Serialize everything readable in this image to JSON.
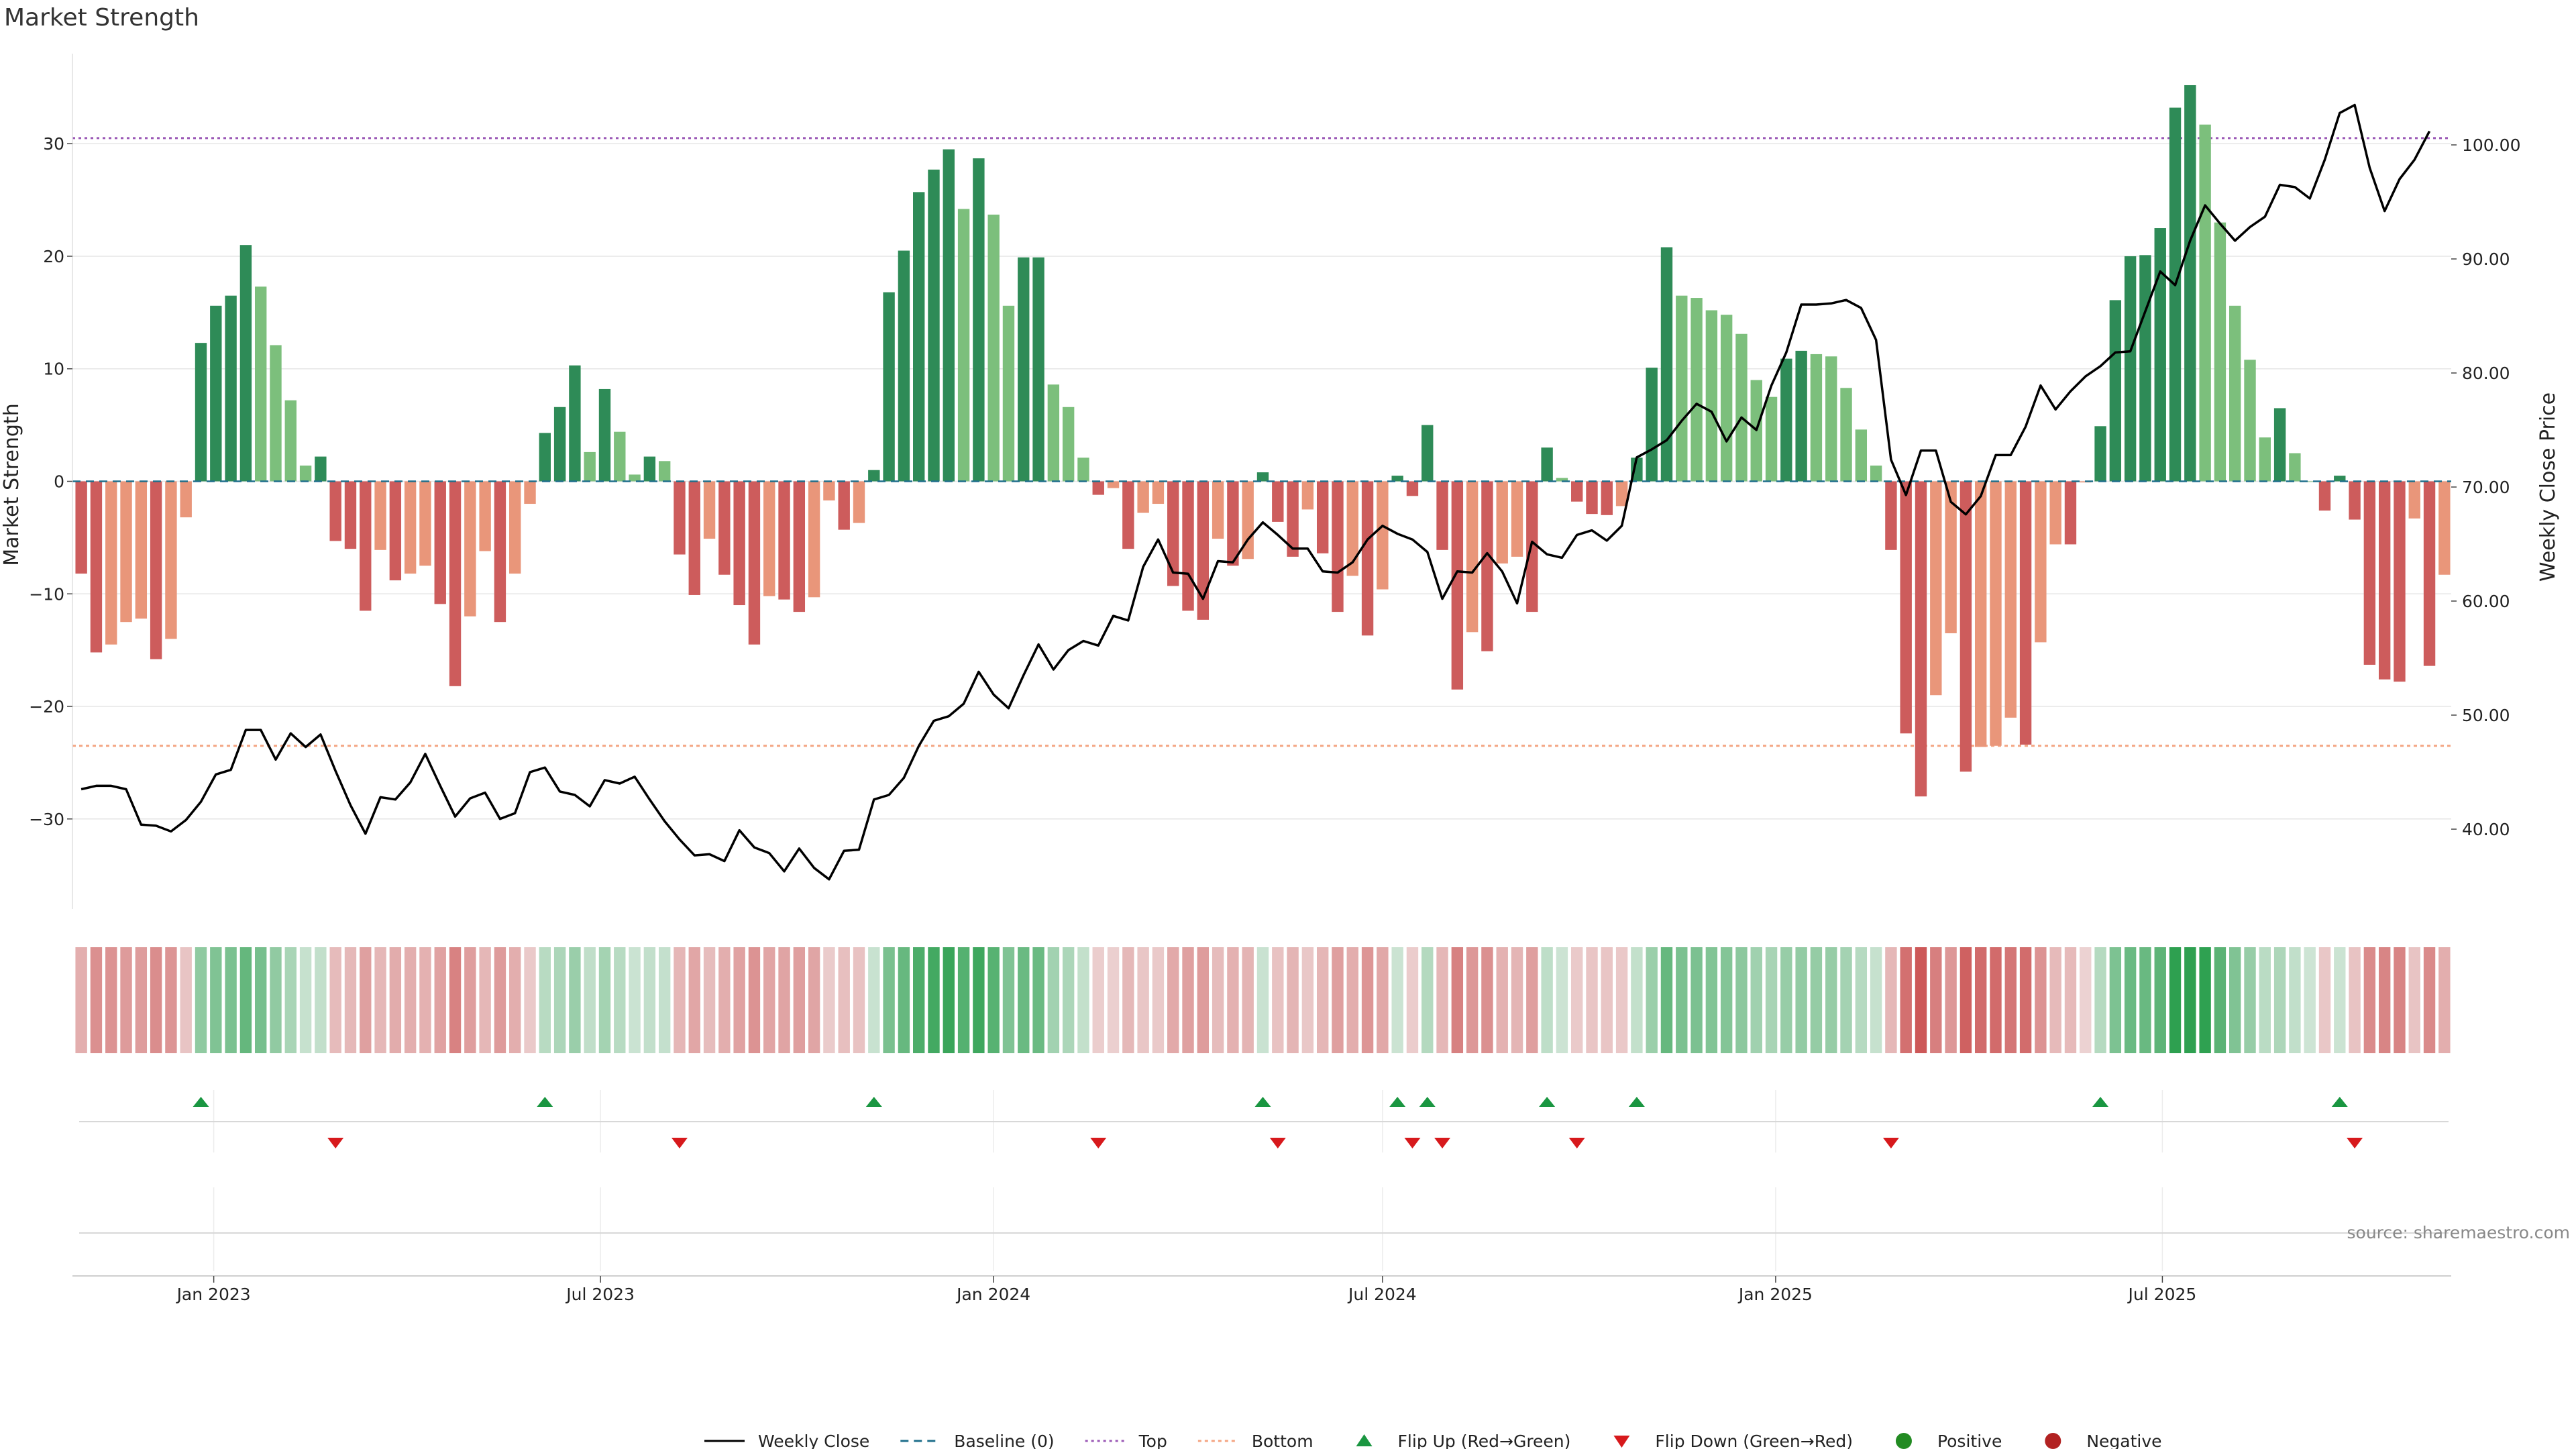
{
  "title": "Market Strength",
  "source": "source: sharemaestro.com",
  "colors": {
    "strong_green": "#2e8b57",
    "light_green": "#7cbf7c",
    "strong_red": "#cd5c5c",
    "light_red": "#e9967a",
    "close_line": "#000000",
    "baseline": "#1f6f8b",
    "top": "#9b59b6",
    "bottom": "#f4a582",
    "flip_up": "#1a9641",
    "flip_down": "#d7191c",
    "positive": "#228b22",
    "negative": "#b22222"
  },
  "legend": [
    {
      "label": "Weekly Close",
      "icon": "line-solid"
    },
    {
      "label": "Baseline (0)",
      "icon": "line-dashed"
    },
    {
      "label": "Top",
      "icon": "line-dotted"
    },
    {
      "label": "Bottom",
      "icon": "line-dotted-orange"
    },
    {
      "label": "Flip Up (Red→Green)",
      "icon": "triangle-up"
    },
    {
      "label": "Flip Down (Green→Red)",
      "icon": "triangle-down"
    },
    {
      "label": "Positive",
      "icon": "dot-green"
    },
    {
      "label": "Negative",
      "icon": "dot-red"
    }
  ],
  "chart_data": {
    "type": "bar",
    "x_start": "2022-10-31",
    "x_step_days": 7,
    "x_ticks": [
      {
        "label": "Jan 2023",
        "date": "2023-01-01"
      },
      {
        "label": "Jul 2023",
        "date": "2023-07-01"
      },
      {
        "label": "Jan 2024",
        "date": "2024-01-01"
      },
      {
        "label": "Jul 2024",
        "date": "2024-07-01"
      },
      {
        "label": "Jan 2025",
        "date": "2025-01-01"
      },
      {
        "label": "Jul 2025",
        "date": "2025-07-01"
      }
    ],
    "ylabel": "Market Strength",
    "ylim": [
      -38,
      38
    ],
    "yticks": [
      -30,
      -20,
      -10,
      0,
      10,
      20,
      30
    ],
    "y2label": "Weekly Close Price",
    "y2lim": [
      33,
      108
    ],
    "y2ticks": [
      40,
      50,
      60,
      70,
      80,
      90,
      100
    ],
    "y2tick_labels": [
      "40.00",
      "50.00",
      "60.00",
      "70.00",
      "80.00",
      "90.00",
      "100.00"
    ],
    "top_level": 30.5,
    "bottom_level": -23.5,
    "grid": true,
    "legend_position": "bottom",
    "strength": [
      -8.2,
      -15.2,
      -14.5,
      -12.5,
      -12.2,
      -15.8,
      -14.0,
      -3.2,
      12.3,
      15.6,
      16.5,
      21.0,
      17.3,
      12.1,
      7.2,
      1.4,
      2.2,
      -5.3,
      -6.0,
      -11.5,
      -6.1,
      -8.8,
      -8.2,
      -7.5,
      -10.9,
      -18.2,
      -12.0,
      -6.2,
      -12.5,
      -8.2,
      -2.0,
      4.3,
      6.6,
      10.3,
      2.6,
      8.2,
      4.4,
      0.6,
      2.2,
      1.8,
      -6.5,
      -10.1,
      -5.1,
      -8.3,
      -11.0,
      -14.5,
      -10.2,
      -10.5,
      -11.6,
      -10.3,
      -1.7,
      -4.3,
      -3.7,
      1.0,
      16.8,
      20.5,
      25.7,
      27.7,
      29.5,
      24.2,
      28.7,
      23.7,
      15.6,
      19.9,
      19.9,
      8.6,
      6.6,
      2.1,
      -1.2,
      -0.6,
      -6.0,
      -2.8,
      -2.0,
      -9.3,
      -11.5,
      -12.3,
      -5.1,
      -7.5,
      -6.9,
      0.8,
      -3.6,
      -6.7,
      -2.5,
      -6.4,
      -11.6,
      -8.4,
      -13.7,
      -9.6,
      0.5,
      -1.3,
      5.0,
      -6.1,
      -18.5,
      -13.4,
      -15.1,
      -7.3,
      -6.7,
      -11.6,
      3.0,
      0.3,
      -1.8,
      -2.9,
      -3.0,
      -2.2,
      2.1,
      10.1,
      20.8,
      16.5,
      16.3,
      15.2,
      14.8,
      13.1,
      9.0,
      7.5,
      10.9,
      11.6,
      11.3,
      11.1,
      8.3,
      4.6,
      1.4,
      -6.1,
      -22.4,
      -28.0,
      -19.0,
      -13.5,
      -25.8,
      -23.6,
      -23.5,
      -21.0,
      -23.4,
      -14.3,
      -5.6,
      -5.6,
      -0.1,
      4.9,
      16.1,
      20.0,
      20.1,
      22.5,
      33.2,
      35.2,
      31.7,
      23.0,
      15.6,
      10.8,
      3.9,
      6.5,
      2.5,
      0.0,
      -2.6,
      0.5,
      -3.4,
      -16.3,
      -17.6,
      -17.8,
      -3.3,
      -16.4,
      -8.3
    ],
    "close": [
      43.5,
      43.8,
      43.8,
      43.5,
      40.4,
      40.3,
      39.8,
      40.8,
      42.4,
      44.8,
      45.2,
      48.7,
      48.7,
      46.1,
      48.4,
      47.2,
      48.3,
      45.1,
      42.1,
      39.6,
      42.8,
      42.6,
      44.1,
      46.6,
      43.8,
      41.1,
      42.7,
      43.2,
      40.9,
      41.4,
      45.0,
      45.4,
      43.3,
      43.0,
      42.0,
      44.3,
      44.0,
      44.6,
      42.6,
      40.7,
      39.1,
      37.7,
      37.8,
      37.2,
      39.9,
      38.4,
      37.9,
      36.3,
      38.3,
      36.6,
      35.6,
      38.1,
      38.2,
      42.6,
      43.0,
      44.5,
      47.3,
      49.5,
      49.9,
      51.0,
      53.8,
      51.8,
      50.6,
      53.5,
      56.2,
      54.0,
      55.7,
      56.5,
      56.1,
      58.7,
      58.3,
      63.0,
      65.4,
      62.5,
      62.4,
      60.2,
      63.5,
      63.4,
      65.4,
      66.9,
      65.8,
      64.6,
      64.6,
      62.6,
      62.5,
      63.4,
      65.4,
      66.6,
      65.9,
      65.4,
      64.3,
      60.2,
      62.6,
      62.5,
      64.2,
      62.6,
      59.8,
      65.2,
      64.1,
      63.8,
      65.8,
      66.2,
      65.3,
      66.6,
      72.6,
      73.3,
      74.1,
      75.8,
      77.3,
      76.6,
      74.0,
      76.1,
      75.0,
      78.9,
      81.8,
      86.0,
      86.0,
      86.1,
      86.4,
      85.7,
      82.9,
      72.4,
      69.3,
      73.2,
      73.2,
      68.7,
      67.6,
      69.2,
      72.8,
      72.8,
      75.3,
      78.9,
      76.8,
      78.4,
      79.7,
      80.6,
      81.8,
      81.9,
      85.4,
      88.9,
      87.7,
      91.6,
      94.7,
      93.1,
      91.6,
      92.8,
      93.7,
      96.5,
      96.3,
      95.3,
      98.7,
      102.8,
      103.5,
      98.0,
      94.2,
      97.0,
      98.7,
      101.2
    ]
  }
}
